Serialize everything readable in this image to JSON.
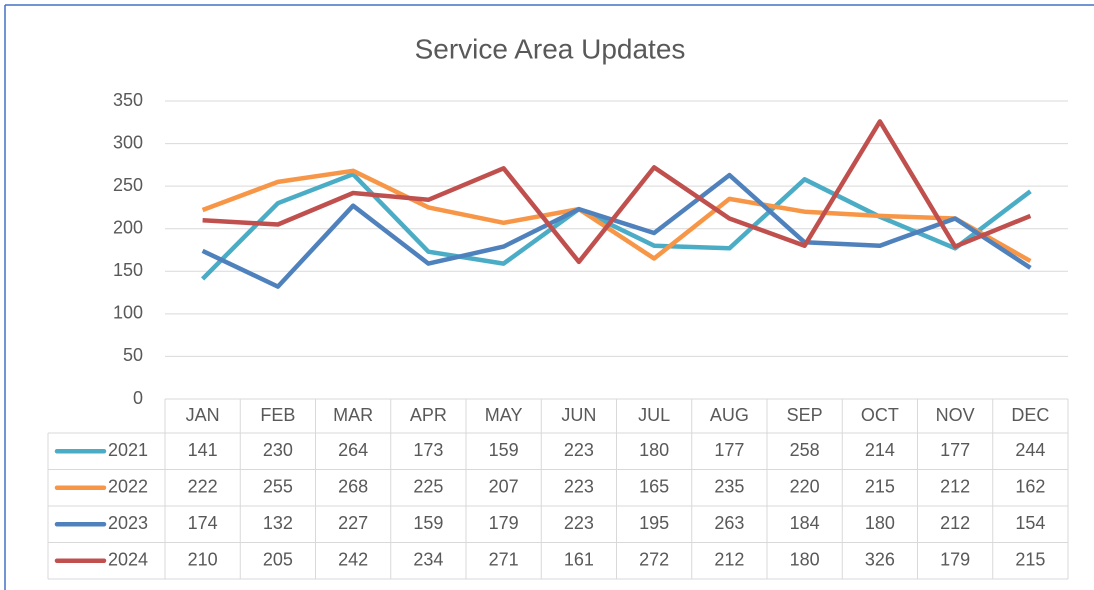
{
  "chart_data": {
    "type": "line",
    "title": "Service Area Updates",
    "categories": [
      "JAN",
      "FEB",
      "MAR",
      "APR",
      "MAY",
      "JUN",
      "JUL",
      "AUG",
      "SEP",
      "OCT",
      "NOV",
      "DEC"
    ],
    "series": [
      {
        "name": "2021",
        "color": "#4bacc6",
        "values": [
          141,
          230,
          264,
          173,
          159,
          223,
          180,
          177,
          258,
          214,
          177,
          244
        ]
      },
      {
        "name": "2022",
        "color": "#f79646",
        "values": [
          222,
          255,
          268,
          225,
          207,
          223,
          165,
          235,
          220,
          215,
          212,
          162
        ]
      },
      {
        "name": "2023",
        "color": "#4f81bd",
        "values": [
          174,
          132,
          227,
          159,
          179,
          223,
          195,
          263,
          184,
          180,
          212,
          154
        ]
      },
      {
        "name": "2024",
        "color": "#c0504d",
        "values": [
          210,
          205,
          242,
          234,
          271,
          161,
          272,
          212,
          180,
          326,
          179,
          215
        ]
      }
    ],
    "ylim": [
      0,
      350
    ],
    "yticks": [
      0,
      50,
      100,
      150,
      200,
      250,
      300,
      350
    ],
    "grid": true
  }
}
